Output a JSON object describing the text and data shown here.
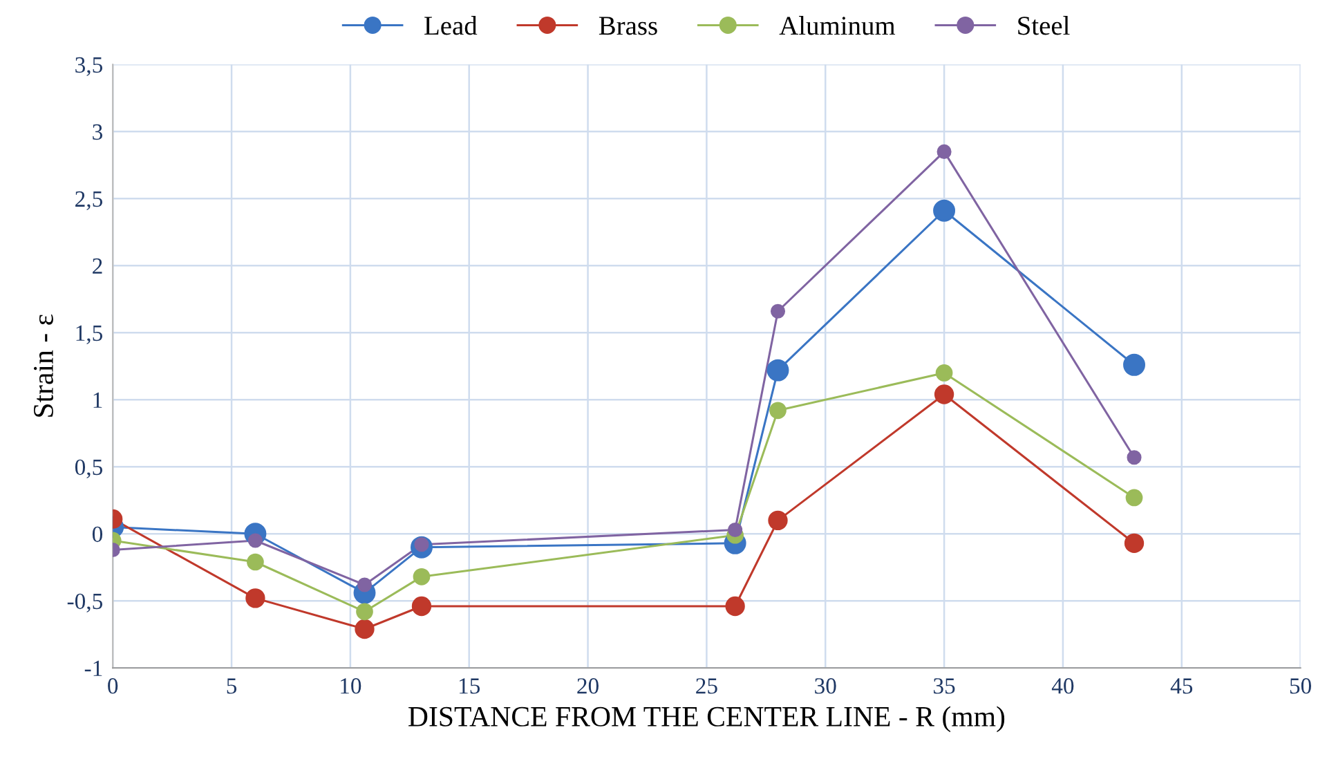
{
  "chart_data": {
    "type": "line",
    "xlabel": "DISTANCE FROM THE CENTER LINE - R (mm)",
    "ylabel": "Strain - ε",
    "x": [
      0,
      6,
      10.6,
      13,
      26.2,
      28,
      35,
      43
    ],
    "series": [
      {
        "name": "Lead",
        "color": "#3a75c4",
        "values": [
          0.05,
          0.0,
          -0.44,
          -0.1,
          -0.07,
          1.22,
          2.41,
          1.26
        ]
      },
      {
        "name": "Brass",
        "color": "#c0392b",
        "values": [
          0.11,
          -0.48,
          -0.71,
          -0.54,
          -0.54,
          0.1,
          1.04,
          -0.07
        ]
      },
      {
        "name": "Aluminum",
        "color": "#9bbb59",
        "values": [
          -0.05,
          -0.21,
          -0.58,
          -0.32,
          -0.01,
          0.92,
          1.2,
          0.27
        ]
      },
      {
        "name": "Steel",
        "color": "#8064a2",
        "values": [
          -0.12,
          -0.05,
          -0.38,
          -0.08,
          0.03,
          1.66,
          2.85,
          0.57
        ]
      }
    ],
    "xlim": [
      0,
      50
    ],
    "xticks": [
      0,
      5,
      10,
      15,
      20,
      25,
      30,
      35,
      40,
      45,
      50
    ],
    "ylim": [
      -1,
      3.5
    ],
    "yticks": [
      {
        "value": -1,
        "label": "-1"
      },
      {
        "value": -0.5,
        "label": "-0,5"
      },
      0,
      {
        "value": 0.5,
        "label": "0,5"
      },
      1,
      {
        "value": 1.5,
        "label": "1,5"
      },
      2,
      {
        "value": 2.5,
        "label": "2,5"
      },
      3,
      {
        "value": 3.5,
        "label": "3,5"
      }
    ],
    "grid": true,
    "legend": "top",
    "marker": "circle",
    "line_style": "solid"
  }
}
